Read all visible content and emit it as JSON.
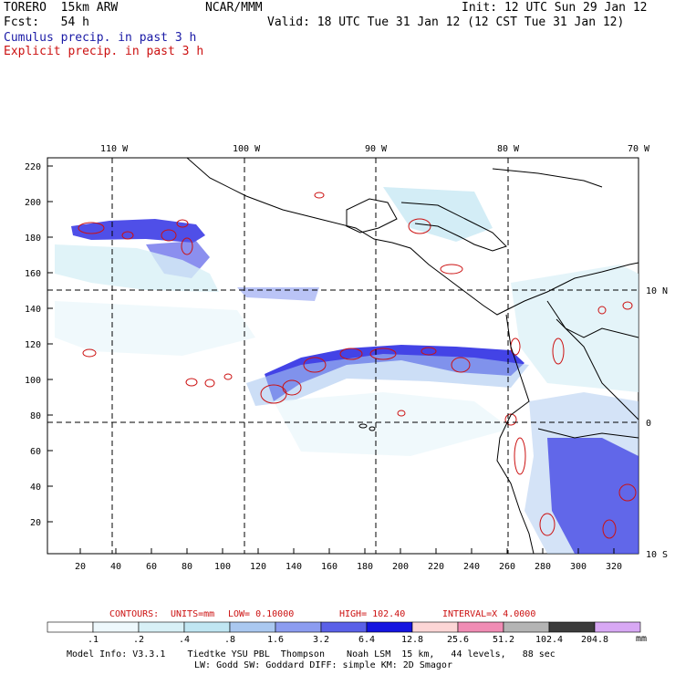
{
  "header": {
    "model": "TORERO  15km ARW",
    "org": "NCAR/MMM",
    "init": "Init: 12 UTC Sun 29 Jan 12",
    "fcst": "Fcst:   54 h",
    "valid": "Valid: 18 UTC Tue 31 Jan 12 (12 CST Tue 31 Jan 12)",
    "legend_cumulus": "Cumulus precip. in past 3 h",
    "legend_explicit": "Explicit precip. in past 3 h"
  },
  "axes": {
    "top_lon": [
      "110 W",
      "100 W",
      "90 W",
      "80 W",
      "70 W"
    ],
    "right_lat": [
      "10 N",
      "0",
      "10 S"
    ],
    "left_ticks": [
      "220",
      "200",
      "180",
      "160",
      "140",
      "120",
      "100",
      "80",
      "60",
      "40",
      "20"
    ],
    "bottom_ticks": [
      "20",
      "40",
      "60",
      "80",
      "100",
      "120",
      "140",
      "160",
      "180",
      "200",
      "220",
      "240",
      "260",
      "280",
      "300",
      "320"
    ]
  },
  "contours": {
    "label": "CONTOURS:",
    "units": "UNITS=mm",
    "low": "LOW= 0.10000",
    "high": "HIGH=  102.40",
    "interval": "INTERVAL=X  4.0000"
  },
  "colorbar": {
    "colors": [
      "#ffffff",
      "#eef8fc",
      "#d8f0f6",
      "#c0e6f2",
      "#aac8f0",
      "#8c9cf0",
      "#5a60e8",
      "#1414e0",
      "#fcd6d6",
      "#f08cb4",
      "#b4b4b4",
      "#3c3c3c",
      "#d8a8f4"
    ],
    "labels": [
      ".1",
      ".2",
      ".4",
      ".8",
      "1.6",
      "3.2",
      "6.4",
      "12.8",
      "25.6",
      "51.2",
      "102.4",
      "204.8"
    ],
    "unit": "mm"
  },
  "footer": {
    "line1": "Model Info: V3.3.1    Tiedtke YSU PBL  Thompson    Noah LSM  15 km,   44 levels,   88 sec",
    "line2": "LW: Godd SW: Goddard DIFF: simple KM: 2D Smagor"
  }
}
